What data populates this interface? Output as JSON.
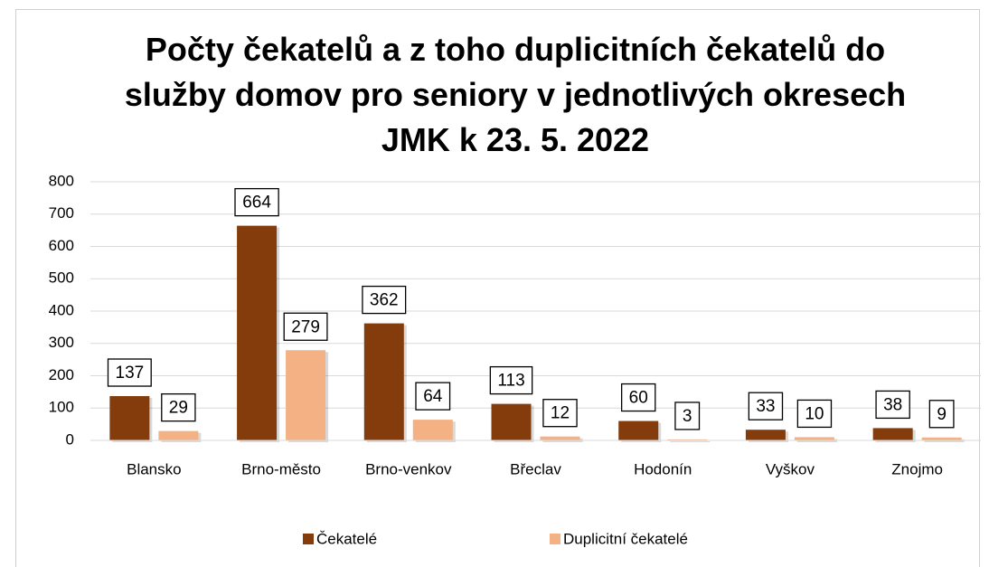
{
  "chart_data": {
    "type": "bar",
    "title": "Počty čekatelů a z toho duplicitních čekatelů do služby domov pro seniory v jednotlivých okresech JMK k 23. 5. 2022",
    "categories": [
      "Blansko",
      "Brno-město",
      "Brno-venkov",
      "Břeclav",
      "Hodonín",
      "Vyškov",
      "Znojmo"
    ],
    "series": [
      {
        "name": "Čekatelé",
        "color": "#843c0c",
        "values": [
          137,
          664,
          362,
          113,
          60,
          33,
          38
        ]
      },
      {
        "name": "Duplicitní čekatelé",
        "color": "#f4b183",
        "values": [
          29,
          279,
          64,
          12,
          3,
          10,
          9
        ]
      }
    ],
    "ylim": [
      0,
      800
    ],
    "yticks": [
      0,
      100,
      200,
      300,
      400,
      500,
      600,
      700,
      800
    ],
    "grid": true,
    "legend": "bottom"
  }
}
